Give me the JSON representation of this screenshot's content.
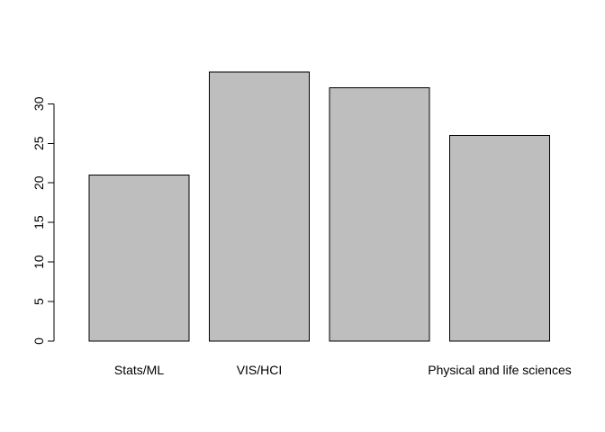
{
  "chart_data": {
    "type": "bar",
    "title": "",
    "xlabel": "",
    "ylabel": "",
    "categories": [
      "Stats/ML",
      "VIS/HCI",
      "",
      "Physical and life sciences"
    ],
    "values": [
      21,
      34,
      32,
      26
    ],
    "ylim": [
      0,
      34
    ],
    "yticks": [
      0,
      5,
      10,
      15,
      20,
      25,
      30
    ],
    "bar_color": "#bebebe",
    "border_color": "#000000",
    "grid": false
  }
}
